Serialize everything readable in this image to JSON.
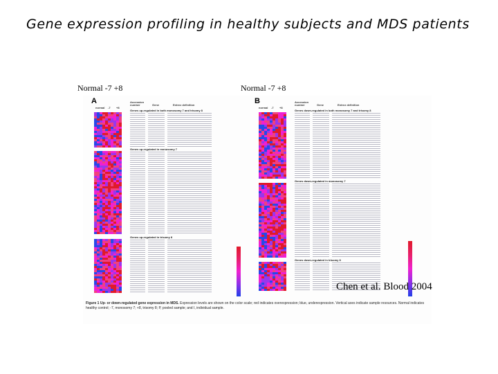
{
  "slide": {
    "title": "Gene expression profiling in healthy subjects and MDS patients",
    "group_labels": [
      "Normal  -7  +8",
      "Normal  -7  +8"
    ],
    "citation": "Chen et al. Blood 2004"
  },
  "figure": {
    "panels": [
      {
        "letter": "A",
        "column_headers": {
          "accession": "Accession number",
          "gene": "Gene",
          "definition": "Entrez definition"
        },
        "sample_groups": [
          "normal",
          "-7",
          "+8"
        ],
        "sections": [
          "Genes up-regulated in both monosomy 7 and trisomy 8",
          "Genes up-regulated in monosomy 7",
          "Genes up-regulated in trisomy 8"
        ]
      },
      {
        "letter": "B",
        "column_headers": {
          "accession": "Accession number",
          "gene": "Gene",
          "definition": "Entrez definition"
        },
        "sample_groups": [
          "normal",
          "-7",
          "+8"
        ],
        "sections": [
          "Genes down-regulated in both monosomy 7 and trisomy 8",
          "Genes down-regulated in monosomy 7",
          "Genes down-regulated in trisomy 8"
        ]
      }
    ],
    "caption_bold": "Figure 1  Up- or down-regulated gene expression in MDS.",
    "caption_text": "Expression levels are shown on the color scale; red indicates overexpression; blue, underexpression. Vertical axes indicate sample resources. Normal indicates healthy control; -7, monosomy 7; +8, trisomy 8; P, pooled sample; and I, individual sample.",
    "colors": {
      "high": "#e01a2a",
      "mid_high": "#f04080",
      "mid": "#f020d0",
      "mid_low": "#9a36ec",
      "low": "#2848e8"
    }
  }
}
